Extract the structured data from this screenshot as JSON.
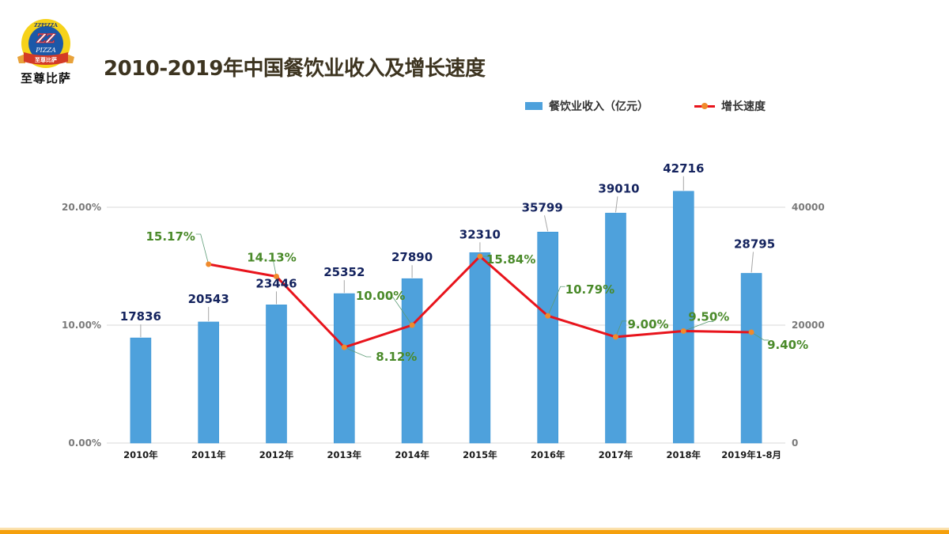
{
  "logo": {
    "ring_text": "ZZPIZZA",
    "initials": "ZZ",
    "brand": "PIZZA",
    "ribbon": "至尊比萨",
    "name": "至尊比萨"
  },
  "colors": {
    "bar": "#4ea1dc",
    "line": "#e8141c",
    "marker": "#f08a2c",
    "value_label": "#14235e",
    "pct_label": "#4a8a2a",
    "accent_bottom": "#f5a00c",
    "title": "#3d3420"
  },
  "chart_data": {
    "type": "bar",
    "title": "2010-2019年中国餐饮业收入及增长速度",
    "xlabel": "",
    "ylabel": "",
    "categories": [
      "2010年",
      "2011年",
      "2012年",
      "2013年",
      "2014年",
      "2015年",
      "2016年",
      "2017年",
      "2018年",
      "2019年1-8月"
    ],
    "series": [
      {
        "name": "餐饮业收入（亿元）",
        "type": "bar",
        "axis": "right",
        "values": [
          17836,
          20543,
          23446,
          25352,
          27890,
          32310,
          35799,
          39010,
          42716,
          28795
        ],
        "labels": [
          "17836",
          "20543",
          "23446",
          "25352",
          "27890",
          "32310",
          "35799",
          "39010",
          "42716",
          "28795"
        ]
      },
      {
        "name": "增长速度",
        "type": "line",
        "axis": "left",
        "values": [
          null,
          15.17,
          14.13,
          8.12,
          10.0,
          15.84,
          10.79,
          9.0,
          9.5,
          9.4
        ],
        "labels": [
          null,
          "15.17%",
          "14.13%",
          "8.12%",
          "10.00%",
          "15.84%",
          "10.79%",
          "9.00%",
          "9.50%",
          "9.40%"
        ]
      }
    ],
    "left_axis": {
      "range": [
        0,
        20
      ],
      "ticks": [
        "0.00%",
        "10.00%",
        "20.00%"
      ],
      "tick_values": [
        0,
        10,
        20
      ]
    },
    "right_axis": {
      "range": [
        0,
        40000
      ],
      "ticks": [
        "0",
        "20000",
        "40000"
      ],
      "tick_values": [
        0,
        20000,
        40000
      ]
    },
    "grid": true,
    "legend": "top-right",
    "legend_labels": {
      "bar": "餐饮业收入（亿元）",
      "line": "增长速度"
    }
  }
}
